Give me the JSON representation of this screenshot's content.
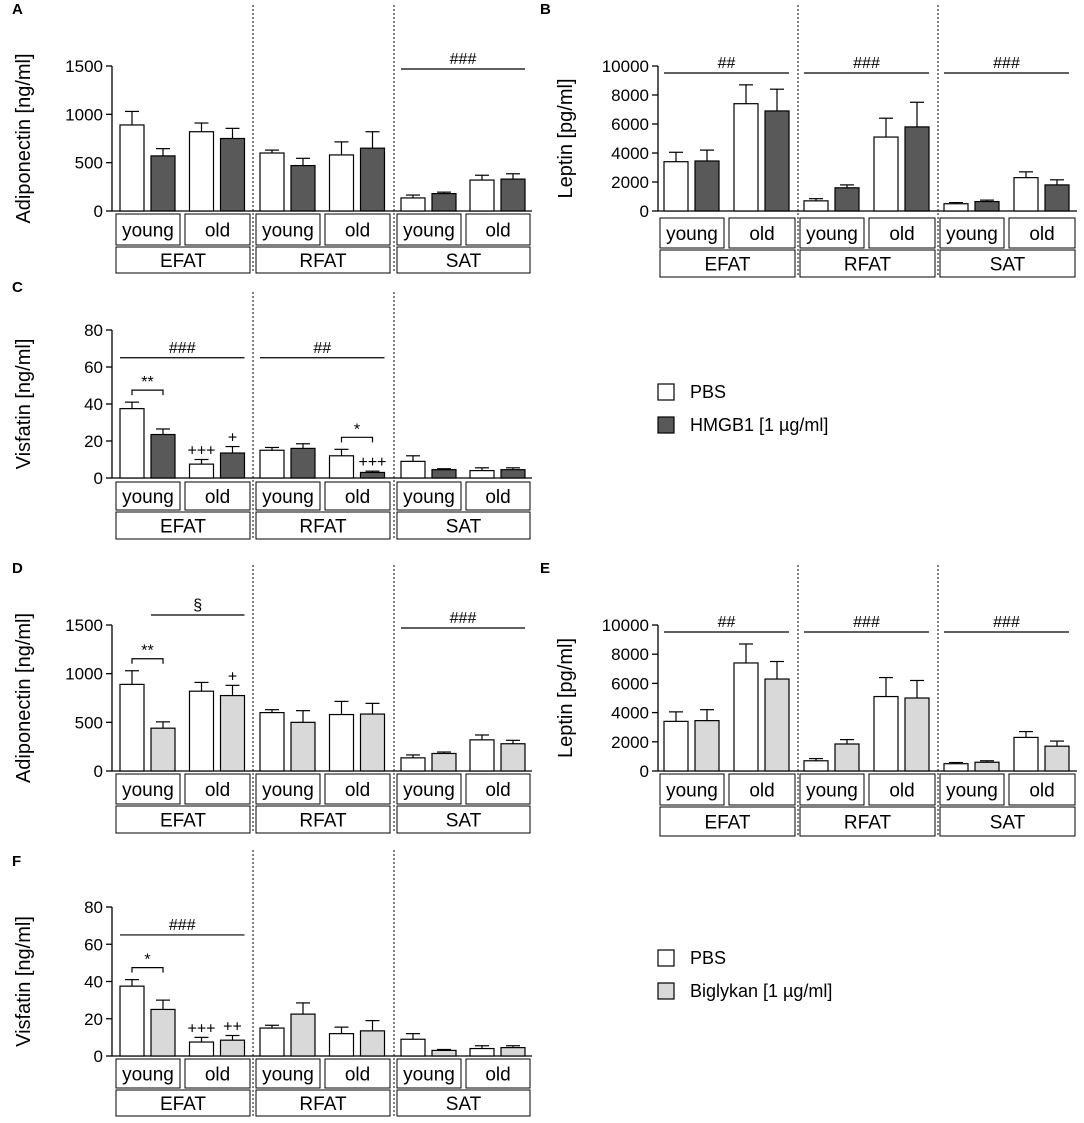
{
  "colors": {
    "pbs": "#ffffff",
    "hmgb1": "#595959",
    "biglykan": "#d9d9d9",
    "stroke": "#000000"
  },
  "chart_data": [
    {
      "id": "A",
      "type": "bar",
      "ylabel": "Adiponectin [ng/ml]",
      "ylim": [
        0,
        1500
      ],
      "yticks": [
        "0",
        "500",
        "1000",
        "1500"
      ],
      "groups": [
        "EFAT",
        "RFAT",
        "SAT"
      ],
      "ages": [
        "young",
        "old"
      ],
      "series": [
        {
          "name": "PBS",
          "values": [
            890,
            820,
            600,
            580,
            135,
            320
          ],
          "errors": [
            140,
            90,
            30,
            135,
            30,
            50
          ]
        },
        {
          "name": "HMGB1 [1 µg/ml]",
          "values": [
            570,
            750,
            470,
            650,
            180,
            330
          ],
          "errors": [
            75,
            105,
            75,
            170,
            15,
            55
          ]
        }
      ],
      "annotations": [
        {
          "label": "###",
          "span": [
            8,
            11
          ]
        }
      ]
    },
    {
      "id": "B",
      "type": "bar",
      "ylabel": "Leptin [pg/ml]",
      "ylim": [
        0,
        10000
      ],
      "yticks": [
        "0",
        "2000",
        "4000",
        "6000",
        "8000",
        "10000"
      ],
      "groups": [
        "EFAT",
        "RFAT",
        "SAT"
      ],
      "ages": [
        "young",
        "old"
      ],
      "series": [
        {
          "name": "PBS",
          "values": [
            3400,
            7400,
            700,
            5100,
            500,
            2300
          ],
          "errors": [
            650,
            1300,
            150,
            1300,
            80,
            400
          ]
        },
        {
          "name": "HMGB1 [1 µg/ml]",
          "values": [
            3450,
            6900,
            1600,
            5800,
            650,
            1800
          ],
          "errors": [
            750,
            1500,
            200,
            1700,
            100,
            350
          ]
        }
      ],
      "annotations": [
        {
          "label": "##",
          "span": [
            0,
            3
          ]
        },
        {
          "label": "###",
          "span": [
            4,
            7
          ]
        },
        {
          "label": "###",
          "span": [
            8,
            11
          ]
        }
      ]
    },
    {
      "id": "C",
      "type": "bar",
      "ylabel": "Visfatin [ng/ml]",
      "ylim": [
        0,
        80
      ],
      "yticks": [
        "0",
        "20",
        "40",
        "60",
        "80"
      ],
      "groups": [
        "EFAT",
        "RFAT",
        "SAT"
      ],
      "ages": [
        "young",
        "old"
      ],
      "series": [
        {
          "name": "PBS",
          "values": [
            37.5,
            7.5,
            15.0,
            12.0,
            9.0,
            4.0
          ],
          "errors": [
            3.5,
            2.5,
            1.5,
            3.5,
            3.0,
            1.5
          ]
        },
        {
          "name": "HMGB1 [1 µg/ml]",
          "values": [
            23.5,
            13.5,
            16.0,
            3.0,
            4.5,
            4.5
          ],
          "errors": [
            3.0,
            3.5,
            2.5,
            0.7,
            0.5,
            1.0
          ]
        }
      ],
      "annotations": [
        {
          "label": "###",
          "span": [
            0,
            3
          ]
        },
        {
          "label": "##",
          "span": [
            4,
            7
          ]
        },
        {
          "label": "**",
          "bracket": [
            0,
            1
          ]
        },
        {
          "label": "*",
          "bracket": [
            6,
            7
          ]
        },
        {
          "label": "+++",
          "bar": 2
        },
        {
          "label": "+",
          "bar": 3
        },
        {
          "label": "+++",
          "bar": 7
        }
      ]
    },
    {
      "id": "D",
      "type": "bar",
      "ylabel": "Adiponectin [ng/ml]",
      "ylim": [
        0,
        1500
      ],
      "yticks": [
        "0",
        "500",
        "1000",
        "1500"
      ],
      "groups": [
        "EFAT",
        "RFAT",
        "SAT"
      ],
      "ages": [
        "young",
        "old"
      ],
      "series": [
        {
          "name": "PBS",
          "values": [
            890,
            820,
            600,
            580,
            135,
            320
          ],
          "errors": [
            140,
            90,
            30,
            135,
            30,
            50
          ]
        },
        {
          "name": "Biglykan [1 µg/ml]",
          "values": [
            440,
            775,
            500,
            585,
            180,
            280
          ],
          "errors": [
            65,
            105,
            120,
            110,
            15,
            35
          ]
        }
      ],
      "annotations": [
        {
          "label": "###",
          "span": [
            8,
            11
          ]
        },
        {
          "label": "**",
          "bracket": [
            0,
            1
          ]
        },
        {
          "label": "§",
          "span": [
            1,
            3
          ]
        },
        {
          "label": "+",
          "bar": 3
        }
      ]
    },
    {
      "id": "E",
      "type": "bar",
      "ylabel": "Leptin [pg/ml]",
      "ylim": [
        0,
        10000
      ],
      "yticks": [
        "0",
        "2000",
        "4000",
        "6000",
        "8000",
        "10000"
      ],
      "groups": [
        "EFAT",
        "RFAT",
        "SAT"
      ],
      "ages": [
        "young",
        "old"
      ],
      "series": [
        {
          "name": "PBS",
          "values": [
            3400,
            7400,
            700,
            5100,
            500,
            2300
          ],
          "errors": [
            650,
            1300,
            150,
            1300,
            80,
            400
          ]
        },
        {
          "name": "Biglykan [1 µg/ml]",
          "values": [
            3450,
            6300,
            1850,
            5000,
            600,
            1700
          ],
          "errors": [
            750,
            1200,
            300,
            1200,
            100,
            350
          ]
        }
      ],
      "annotations": [
        {
          "label": "##",
          "span": [
            0,
            3
          ]
        },
        {
          "label": "###",
          "span": [
            4,
            7
          ]
        },
        {
          "label": "###",
          "span": [
            8,
            11
          ]
        }
      ]
    },
    {
      "id": "F",
      "type": "bar",
      "ylabel": "Visfatin [ng/ml]",
      "ylim": [
        0,
        80
      ],
      "yticks": [
        "0",
        "20",
        "40",
        "60",
        "80"
      ],
      "groups": [
        "EFAT",
        "RFAT",
        "SAT"
      ],
      "ages": [
        "young",
        "old"
      ],
      "series": [
        {
          "name": "PBS",
          "values": [
            37.5,
            7.5,
            15.0,
            12.0,
            9.0,
            4.0
          ],
          "errors": [
            3.5,
            2.5,
            1.5,
            3.5,
            3.0,
            1.5
          ]
        },
        {
          "name": "Biglykan [1 µg/ml]",
          "values": [
            25.0,
            8.5,
            22.5,
            13.5,
            3.0,
            4.5
          ],
          "errors": [
            5.0,
            2.5,
            6.0,
            5.5,
            0.5,
            1.0
          ]
        }
      ],
      "annotations": [
        {
          "label": "###",
          "span": [
            0,
            3
          ]
        },
        {
          "label": "*",
          "bracket": [
            0,
            1
          ]
        },
        {
          "label": "+++",
          "bar": 2
        },
        {
          "label": "++",
          "bar": 3
        }
      ]
    }
  ],
  "legends": [
    {
      "items": [
        {
          "label": "PBS",
          "color": "#ffffff"
        },
        {
          "label": "HMGB1 [1 µg/ml]",
          "color": "#595959"
        }
      ]
    },
    {
      "items": [
        {
          "label": "PBS",
          "color": "#ffffff"
        },
        {
          "label": "Biglykan [1 µg/ml]",
          "color": "#d9d9d9"
        }
      ]
    }
  ]
}
